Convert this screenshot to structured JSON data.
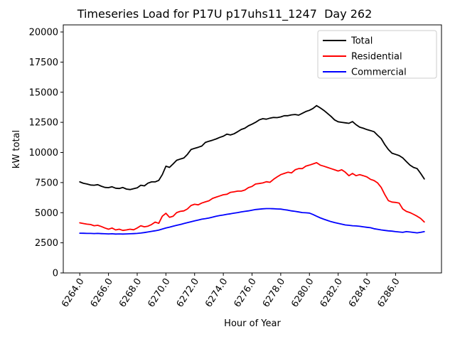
{
  "chart_data": {
    "type": "line",
    "title": "Timeseries Load for P17U p17uhs11_1247  Day 262",
    "xlabel": "Hour of Year",
    "ylabel": "kW total",
    "xlim": [
      6262.85,
      6289.2
    ],
    "ylim": [
      0,
      20590
    ],
    "xticks": [
      6264,
      6266,
      6268,
      6270,
      6272,
      6274,
      6276,
      6278,
      6280,
      6282,
      6284,
      6286
    ],
    "xtick_labels": [
      "6264.0",
      "6266.0",
      "6268.0",
      "6270.0",
      "6272.0",
      "6274.0",
      "6276.0",
      "6278.0",
      "6280.0",
      "6282.0",
      "6284.0",
      "6286.0"
    ],
    "yticks": [
      0,
      2500,
      5000,
      7500,
      10000,
      12500,
      15000,
      17500,
      20000
    ],
    "x_start": 6264.0,
    "x_step": 0.25,
    "x_end": 6288.0,
    "grid": false,
    "legend": {
      "position": "upper right",
      "entries": [
        "Total",
        "Residential",
        "Commercial"
      ]
    },
    "layout": {
      "tick_label_rotation_deg": 57,
      "axes_edge_color": "#000000",
      "background": "#ffffff",
      "legend_edge_color": "#cccccc"
    },
    "series": [
      {
        "name": "Total",
        "color": "#000000",
        "values": [
          7560,
          7440,
          7380,
          7300,
          7280,
          7330,
          7200,
          7100,
          7080,
          7150,
          7030,
          7010,
          7090,
          6960,
          6920,
          6990,
          7060,
          7280,
          7230,
          7450,
          7560,
          7560,
          7680,
          8160,
          8860,
          8760,
          9050,
          9350,
          9450,
          9540,
          9840,
          10240,
          10340,
          10430,
          10530,
          10830,
          10930,
          11020,
          11120,
          11250,
          11350,
          11520,
          11450,
          11550,
          11720,
          11910,
          12010,
          12210,
          12350,
          12500,
          12700,
          12800,
          12760,
          12850,
          12900,
          12890,
          12950,
          13050,
          13050,
          13120,
          13150,
          13100,
          13250,
          13400,
          13500,
          13650,
          13890,
          13700,
          13500,
          13250,
          13000,
          12700,
          12550,
          12500,
          12460,
          12420,
          12560,
          12300,
          12100,
          12010,
          11900,
          11820,
          11720,
          11420,
          11150,
          10650,
          10240,
          9940,
          9840,
          9740,
          9550,
          9250,
          8950,
          8760,
          8660,
          8260,
          7800
        ]
      },
      {
        "name": "Residential",
        "color": "#ff0000",
        "values": [
          4160,
          4100,
          4050,
          4020,
          3920,
          3950,
          3850,
          3730,
          3630,
          3730,
          3570,
          3630,
          3530,
          3570,
          3630,
          3580,
          3730,
          3920,
          3830,
          3880,
          4020,
          4220,
          4120,
          4710,
          4950,
          4620,
          4710,
          5010,
          5110,
          5150,
          5310,
          5600,
          5700,
          5650,
          5800,
          5900,
          5990,
          6190,
          6290,
          6390,
          6490,
          6530,
          6690,
          6730,
          6790,
          6790,
          6880,
          7080,
          7180,
          7380,
          7420,
          7470,
          7570,
          7520,
          7770,
          7970,
          8160,
          8260,
          8360,
          8300,
          8560,
          8660,
          8660,
          8860,
          8950,
          9050,
          9150,
          8950,
          8860,
          8760,
          8660,
          8560,
          8460,
          8560,
          8360,
          8070,
          8260,
          8070,
          8160,
          8070,
          7970,
          7770,
          7670,
          7470,
          7100,
          6500,
          6000,
          5880,
          5850,
          5800,
          5310,
          5110,
          5010,
          4870,
          4710,
          4520,
          4230
        ]
      },
      {
        "name": "Commercial",
        "color": "#0000ff",
        "values": [
          3300,
          3290,
          3280,
          3280,
          3270,
          3280,
          3260,
          3250,
          3240,
          3250,
          3230,
          3240,
          3230,
          3240,
          3250,
          3260,
          3280,
          3310,
          3350,
          3400,
          3450,
          3500,
          3560,
          3640,
          3730,
          3800,
          3880,
          3950,
          4020,
          4100,
          4170,
          4250,
          4320,
          4390,
          4460,
          4510,
          4560,
          4630,
          4710,
          4760,
          4810,
          4870,
          4910,
          4960,
          5010,
          5070,
          5110,
          5150,
          5210,
          5260,
          5290,
          5320,
          5340,
          5340,
          5330,
          5310,
          5300,
          5250,
          5210,
          5150,
          5110,
          5060,
          5010,
          4990,
          4970,
          4850,
          4710,
          4570,
          4460,
          4360,
          4260,
          4180,
          4120,
          4050,
          3980,
          3950,
          3920,
          3900,
          3870,
          3830,
          3790,
          3750,
          3670,
          3620,
          3570,
          3530,
          3490,
          3470,
          3430,
          3400,
          3370,
          3430,
          3400,
          3360,
          3330,
          3370,
          3430
        ]
      }
    ]
  }
}
